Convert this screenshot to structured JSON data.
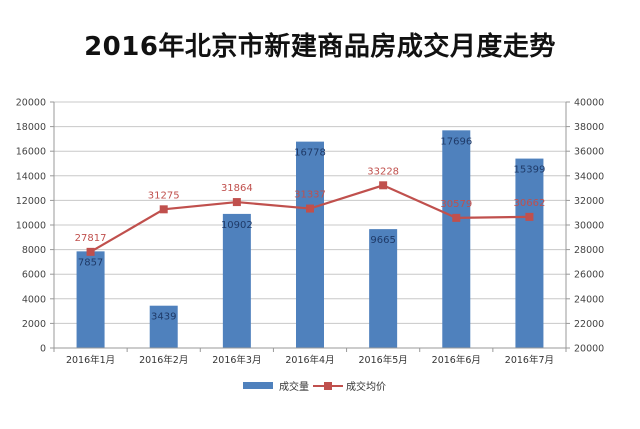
{
  "title": "2016年北京市新建商品房成交月度走势",
  "colors": {
    "bar": "#4f81bd",
    "line": "#c0504d",
    "grid": "#c8c8c8",
    "label_volume": "#1f3a68",
    "label_price": "#c0504d"
  },
  "chart_data": {
    "type": "bar+line",
    "title": "2016年北京市新建商品房成交月度走势",
    "categories": [
      "2016年1月",
      "2016年2月",
      "2016年3月",
      "2016年4月",
      "2016年5月",
      "2016年6月",
      "2016年7月"
    ],
    "series": [
      {
        "name": "成交量",
        "type": "bar",
        "axis": "left",
        "values": [
          7857,
          3439,
          10902,
          16778,
          9665,
          17696,
          15399
        ]
      },
      {
        "name": "成交均价",
        "type": "line",
        "axis": "right",
        "values": [
          27817,
          31275,
          31864,
          31337,
          33228,
          30579,
          30662
        ]
      }
    ],
    "y_left": {
      "min": 0,
      "max": 20000,
      "step": 2000,
      "ticks": [
        "0",
        "2000",
        "4000",
        "6000",
        "8000",
        "10000",
        "12000",
        "14000",
        "16000",
        "18000",
        "20000"
      ]
    },
    "y_right": {
      "min": 20000,
      "max": 40000,
      "step": 2000,
      "ticks": [
        "20000",
        "22000",
        "24000",
        "26000",
        "28000",
        "30000",
        "32000",
        "34000",
        "36000",
        "38000",
        "40000"
      ]
    },
    "grid": true,
    "legend_position": "bottom",
    "xlabel": "",
    "ylabel": ""
  },
  "legend": [
    {
      "label": "成交量",
      "kind": "bar"
    },
    {
      "label": "成交均价",
      "kind": "line"
    }
  ]
}
